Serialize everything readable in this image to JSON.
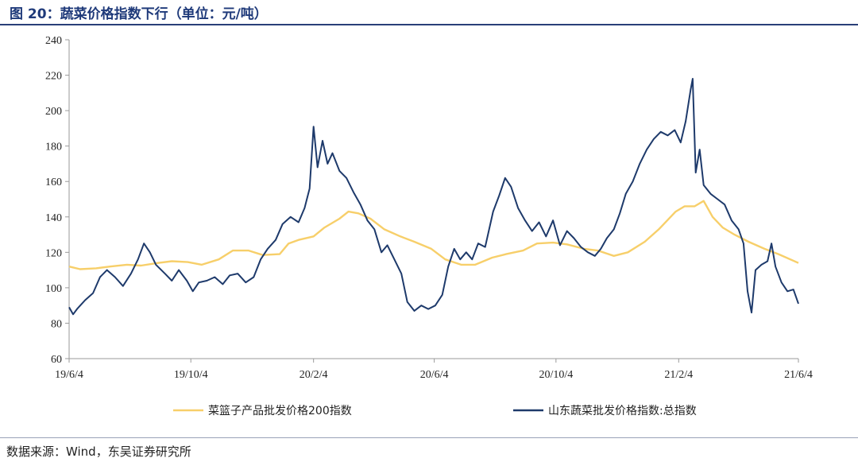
{
  "title": "图 20：蔬菜价格指数下行（单位：元/吨）",
  "source": "数据来源：Wind，东吴证券研究所",
  "colors": {
    "series_a": "#f7cf6a",
    "series_b": "#1e3a6b",
    "axis": "#9a9a9a",
    "title": "#1f3a7a"
  },
  "chart_data": {
    "type": "line",
    "x_type": "date",
    "xlim": [
      "2019-06-04",
      "2021-06-04"
    ],
    "ylim": [
      60,
      240
    ],
    "yticks": [
      60,
      80,
      100,
      120,
      140,
      160,
      180,
      200,
      220,
      240
    ],
    "xticks": [
      {
        "date": "2019-06-04",
        "label": "19/6/4"
      },
      {
        "date": "2019-10-04",
        "label": "19/10/4"
      },
      {
        "date": "2020-02-04",
        "label": "20/2/4"
      },
      {
        "date": "2020-06-04",
        "label": "20/6/4"
      },
      {
        "date": "2020-10-04",
        "label": "20/10/4"
      },
      {
        "date": "2021-02-04",
        "label": "21/2/4"
      },
      {
        "date": "2021-06-04",
        "label": "21/6/4"
      }
    ],
    "grid": false,
    "legend": "bottom",
    "series": [
      {
        "name": "菜篮子产品批发价格200指数",
        "points": [
          [
            "2019-06-04",
            112
          ],
          [
            "2019-06-15",
            110.5
          ],
          [
            "2019-07-01",
            111
          ],
          [
            "2019-07-15",
            112
          ],
          [
            "2019-08-01",
            113
          ],
          [
            "2019-08-15",
            112.5
          ],
          [
            "2019-09-01",
            114
          ],
          [
            "2019-09-15",
            115
          ],
          [
            "2019-10-01",
            114.5
          ],
          [
            "2019-10-15",
            113
          ],
          [
            "2019-11-01",
            116
          ],
          [
            "2019-11-15",
            121
          ],
          [
            "2019-12-01",
            121
          ],
          [
            "2019-12-15",
            118.5
          ],
          [
            "2020-01-01",
            119
          ],
          [
            "2020-01-10",
            125
          ],
          [
            "2020-01-20",
            127
          ],
          [
            "2020-02-04",
            129
          ],
          [
            "2020-02-15",
            134
          ],
          [
            "2020-03-01",
            139
          ],
          [
            "2020-03-10",
            143
          ],
          [
            "2020-03-20",
            142
          ],
          [
            "2020-04-01",
            139
          ],
          [
            "2020-04-15",
            133
          ],
          [
            "2020-05-01",
            129
          ],
          [
            "2020-05-15",
            126
          ],
          [
            "2020-06-01",
            122
          ],
          [
            "2020-06-15",
            116
          ],
          [
            "2020-07-01",
            113
          ],
          [
            "2020-07-15",
            113
          ],
          [
            "2020-08-01",
            117
          ],
          [
            "2020-08-15",
            119
          ],
          [
            "2020-09-01",
            121
          ],
          [
            "2020-09-15",
            125
          ],
          [
            "2020-10-01",
            125.5
          ],
          [
            "2020-10-15",
            124.5
          ],
          [
            "2020-11-01",
            122
          ],
          [
            "2020-11-15",
            121
          ],
          [
            "2020-12-01",
            118
          ],
          [
            "2020-12-15",
            120
          ],
          [
            "2021-01-01",
            126
          ],
          [
            "2021-01-15",
            133
          ],
          [
            "2021-02-01",
            143
          ],
          [
            "2021-02-10",
            146
          ],
          [
            "2021-02-20",
            146
          ],
          [
            "2021-03-01",
            149
          ],
          [
            "2021-03-10",
            140
          ],
          [
            "2021-03-20",
            134
          ],
          [
            "2021-04-01",
            130
          ],
          [
            "2021-04-15",
            126
          ],
          [
            "2021-05-01",
            122
          ],
          [
            "2021-05-15",
            119
          ],
          [
            "2021-06-04",
            114
          ]
        ]
      },
      {
        "name": "山东蔬菜批发价格指数:总指数",
        "points": [
          [
            "2019-06-04",
            89
          ],
          [
            "2019-06-08",
            85
          ],
          [
            "2019-06-12",
            88
          ],
          [
            "2019-06-20",
            93
          ],
          [
            "2019-06-28",
            97
          ],
          [
            "2019-07-05",
            106
          ],
          [
            "2019-07-12",
            110
          ],
          [
            "2019-07-20",
            106
          ],
          [
            "2019-07-28",
            101
          ],
          [
            "2019-08-05",
            108
          ],
          [
            "2019-08-12",
            116
          ],
          [
            "2019-08-18",
            125
          ],
          [
            "2019-08-24",
            120
          ],
          [
            "2019-08-30",
            113
          ],
          [
            "2019-09-08",
            108
          ],
          [
            "2019-09-15",
            104
          ],
          [
            "2019-09-22",
            110
          ],
          [
            "2019-09-30",
            104
          ],
          [
            "2019-10-06",
            98
          ],
          [
            "2019-10-12",
            103
          ],
          [
            "2019-10-20",
            104
          ],
          [
            "2019-10-28",
            106
          ],
          [
            "2019-11-05",
            102
          ],
          [
            "2019-11-12",
            107
          ],
          [
            "2019-11-20",
            108
          ],
          [
            "2019-11-28",
            103
          ],
          [
            "2019-12-06",
            106
          ],
          [
            "2019-12-13",
            116
          ],
          [
            "2019-12-20",
            122
          ],
          [
            "2019-12-28",
            127
          ],
          [
            "2020-01-04",
            136
          ],
          [
            "2020-01-12",
            140
          ],
          [
            "2020-01-20",
            137
          ],
          [
            "2020-01-26",
            145
          ],
          [
            "2020-01-31",
            156
          ],
          [
            "2020-02-04",
            191
          ],
          [
            "2020-02-08",
            168
          ],
          [
            "2020-02-13",
            183
          ],
          [
            "2020-02-18",
            170
          ],
          [
            "2020-02-23",
            176
          ],
          [
            "2020-03-01",
            166
          ],
          [
            "2020-03-08",
            162
          ],
          [
            "2020-03-15",
            154
          ],
          [
            "2020-03-22",
            147
          ],
          [
            "2020-03-29",
            138
          ],
          [
            "2020-04-05",
            133
          ],
          [
            "2020-04-12",
            120
          ],
          [
            "2020-04-18",
            124
          ],
          [
            "2020-04-25",
            116
          ],
          [
            "2020-05-02",
            108
          ],
          [
            "2020-05-08",
            92
          ],
          [
            "2020-05-15",
            87
          ],
          [
            "2020-05-22",
            90
          ],
          [
            "2020-05-29",
            88
          ],
          [
            "2020-06-05",
            90
          ],
          [
            "2020-06-12",
            96
          ],
          [
            "2020-06-18",
            112
          ],
          [
            "2020-06-24",
            122
          ],
          [
            "2020-06-30",
            116
          ],
          [
            "2020-07-06",
            120
          ],
          [
            "2020-07-12",
            116
          ],
          [
            "2020-07-18",
            125
          ],
          [
            "2020-07-25",
            123
          ],
          [
            "2020-08-02",
            143
          ],
          [
            "2020-08-08",
            152
          ],
          [
            "2020-08-14",
            162
          ],
          [
            "2020-08-20",
            157
          ],
          [
            "2020-08-27",
            145
          ],
          [
            "2020-09-03",
            138
          ],
          [
            "2020-09-10",
            132
          ],
          [
            "2020-09-17",
            137
          ],
          [
            "2020-09-24",
            129
          ],
          [
            "2020-10-01",
            138
          ],
          [
            "2020-10-08",
            124
          ],
          [
            "2020-10-15",
            132
          ],
          [
            "2020-10-22",
            128
          ],
          [
            "2020-10-29",
            123
          ],
          [
            "2020-11-05",
            120
          ],
          [
            "2020-11-12",
            118
          ],
          [
            "2020-11-18",
            122
          ],
          [
            "2020-11-24",
            128
          ],
          [
            "2020-12-01",
            133
          ],
          [
            "2020-12-07",
            142
          ],
          [
            "2020-12-13",
            153
          ],
          [
            "2020-12-20",
            160
          ],
          [
            "2020-12-27",
            170
          ],
          [
            "2021-01-03",
            178
          ],
          [
            "2021-01-10",
            184
          ],
          [
            "2021-01-17",
            188
          ],
          [
            "2021-01-24",
            186
          ],
          [
            "2021-01-31",
            189
          ],
          [
            "2021-02-06",
            182
          ],
          [
            "2021-02-11",
            194
          ],
          [
            "2021-02-16",
            212
          ],
          [
            "2021-02-18",
            218
          ],
          [
            "2021-02-21",
            165
          ],
          [
            "2021-02-25",
            178
          ],
          [
            "2021-03-01",
            158
          ],
          [
            "2021-03-08",
            153
          ],
          [
            "2021-03-15",
            150
          ],
          [
            "2021-03-22",
            147
          ],
          [
            "2021-03-29",
            138
          ],
          [
            "2021-04-05",
            133
          ],
          [
            "2021-04-10",
            125
          ],
          [
            "2021-04-14",
            98
          ],
          [
            "2021-04-18",
            86
          ],
          [
            "2021-04-22",
            110
          ],
          [
            "2021-04-28",
            113
          ],
          [
            "2021-05-04",
            115
          ],
          [
            "2021-05-08",
            125
          ],
          [
            "2021-05-12",
            112
          ],
          [
            "2021-05-18",
            103
          ],
          [
            "2021-05-24",
            98
          ],
          [
            "2021-05-30",
            99
          ],
          [
            "2021-06-04",
            91
          ]
        ]
      }
    ]
  }
}
